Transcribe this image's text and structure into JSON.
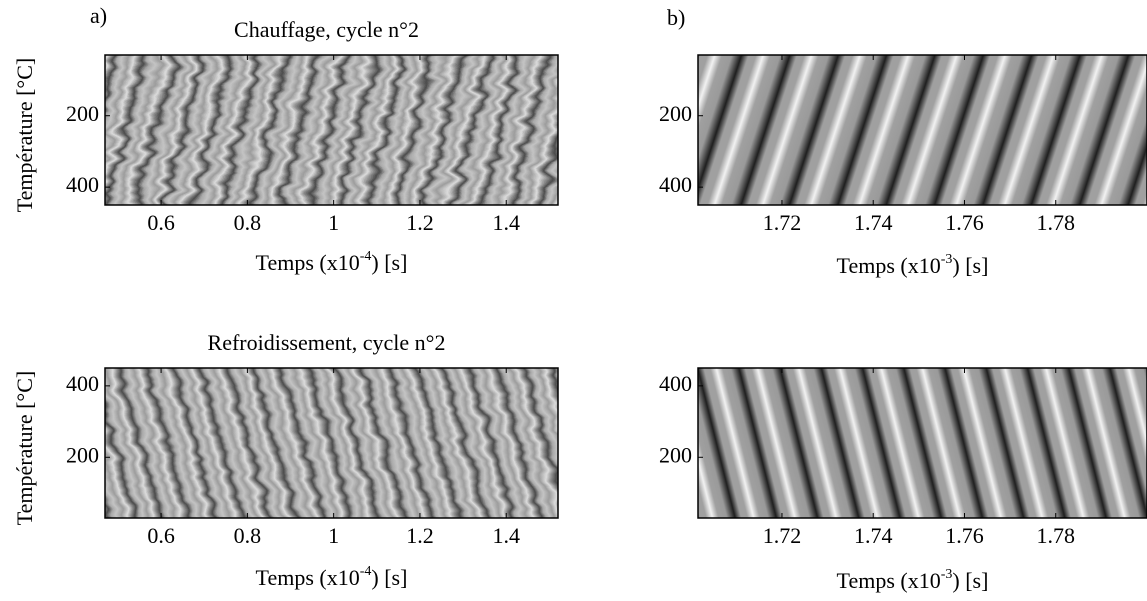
{
  "chart_data": [
    {
      "type": "heatmap",
      "panel_label": "a)",
      "title": "Chauffage, cycle n°2",
      "xlabel": {
        "before": "Temps (x10",
        "sup": "-4",
        "after": ") [s]"
      },
      "ylabel": "Température [°C]",
      "xlim": [
        0.47,
        1.52
      ],
      "ylim": [
        30,
        450
      ],
      "yreverse": true,
      "xticks": [
        0.6,
        0.8,
        1,
        1.2,
        1.4
      ],
      "yticks": [
        200,
        400
      ]
    },
    {
      "type": "heatmap",
      "panel_label": "b)",
      "xlabel": {
        "before": "Temps (x10",
        "sup": "-3",
        "after": ") [s]"
      },
      "xlim": [
        1.7016,
        1.8
      ],
      "ylim": [
        30,
        450
      ],
      "yreverse": true,
      "xticks": [
        1.72,
        1.74,
        1.76,
        1.78
      ],
      "yticks": [
        200,
        400
      ]
    },
    {
      "type": "heatmap",
      "title": "Refroidissement, cycle n°2",
      "xlabel": {
        "before": "Temps (x10",
        "sup": "-4",
        "after": ") [s]"
      },
      "ylabel": "Température [°C]",
      "xlim": [
        0.47,
        1.52
      ],
      "ylim": [
        30,
        450
      ],
      "yreverse": false,
      "xticks": [
        0.6,
        0.8,
        1,
        1.2,
        1.4
      ],
      "yticks": [
        200,
        400
      ]
    },
    {
      "type": "heatmap",
      "xlabel": {
        "before": "Temps (x10",
        "sup": "-3",
        "after": ") [s]"
      },
      "xlim": [
        1.7016,
        1.8
      ],
      "ylim": [
        30,
        450
      ],
      "yreverse": false,
      "xticks": [
        1.72,
        1.74,
        1.76,
        1.78
      ],
      "yticks": [
        200,
        400
      ]
    }
  ]
}
